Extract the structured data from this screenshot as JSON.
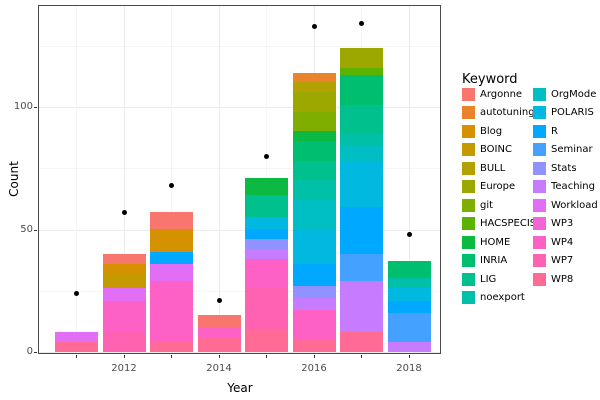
{
  "axis": {
    "x_title": "Year",
    "y_title": "Count"
  },
  "legend": {
    "title": "Keyword",
    "columns": [
      [
        "Argonne",
        "autotuning",
        "Blog",
        "BOINC",
        "BULL",
        "Europe",
        "git",
        "HACSPECIS",
        "HOME",
        "INRIA",
        "LIG",
        "noexport"
      ],
      [
        "OrgMode",
        "POLARIS",
        "R",
        "Seminar",
        "Stats",
        "Teaching",
        "Workload",
        "WP3",
        "WP4",
        "WP7",
        "WP8"
      ]
    ]
  },
  "colors": {
    "Argonne": "#F8766D",
    "autotuning": "#E9842C",
    "Blog": "#D69100",
    "BOINC": "#C49A00",
    "BULL": "#B2A100",
    "Europe": "#9CA700",
    "git": "#7FAD00",
    "HACSPECIS": "#5BB300",
    "HOME": "#0CBA43",
    "INRIA": "#00BE70",
    "LIG": "#00C08D",
    "noexport": "#00C1A7",
    "OrgMode": "#00BFC4",
    "POLARIS": "#00B8E0",
    "R": "#00A9FF",
    "Seminar": "#45A1FF",
    "Stats": "#9092FF",
    "Teaching": "#C77CFF",
    "Workload": "#E36EF6",
    "WP3": "#F564D7",
    "WP4": "#FD61C5",
    "WP7": "#FF62B0",
    "WP8": "#FF6B94"
  },
  "chart_data": {
    "type": "bar",
    "subtype": "stacked-bars-with-point-overlay",
    "title": "",
    "xlabel": "Year",
    "ylabel": "Count",
    "legend_title": "Keyword",
    "categories": [
      2011,
      2012,
      2013,
      2014,
      2015,
      2016,
      2017,
      2018
    ],
    "x_tick_years": [
      2011,
      2012,
      2013,
      2014,
      2015,
      2016,
      2017,
      2018
    ],
    "x_labeled_years": [
      2012,
      2014,
      2016,
      2018
    ],
    "y_ticks": [
      0,
      50,
      100
    ],
    "ylim": [
      0,
      141
    ],
    "grid": {
      "major_y": [
        0,
        50,
        100
      ],
      "minor_y": [
        25,
        75,
        125
      ]
    },
    "legend_position": "right",
    "bar_totals": [
      8,
      40,
      57,
      15,
      71,
      114,
      124,
      37
    ],
    "bars": [
      {
        "year": 2011,
        "segments": [
          {
            "keyword": "Workload",
            "value": 4
          },
          {
            "keyword": "WP8",
            "value": 4
          }
        ]
      },
      {
        "year": 2012,
        "segments": [
          {
            "keyword": "Argonne",
            "value": 4
          },
          {
            "keyword": "Blog",
            "value": 4
          },
          {
            "keyword": "BOINC",
            "value": 6
          },
          {
            "keyword": "Workload",
            "value": 5
          },
          {
            "keyword": "WP4",
            "value": 13
          },
          {
            "keyword": "WP7",
            "value": 8
          }
        ]
      },
      {
        "year": 2013,
        "segments": [
          {
            "keyword": "Argonne",
            "value": 7
          },
          {
            "keyword": "Blog",
            "value": 9
          },
          {
            "keyword": "R",
            "value": 5
          },
          {
            "keyword": "Workload",
            "value": 7
          },
          {
            "keyword": "WP4",
            "value": 25
          },
          {
            "keyword": "WP8",
            "value": 4
          }
        ]
      },
      {
        "year": 2014,
        "segments": [
          {
            "keyword": "Argonne",
            "value": 5
          },
          {
            "keyword": "WP4",
            "value": 4
          },
          {
            "keyword": "WP8",
            "value": 6
          }
        ]
      },
      {
        "year": 2015,
        "segments": [
          {
            "keyword": "HOME",
            "value": 7
          },
          {
            "keyword": "LIG",
            "value": 9
          },
          {
            "keyword": "POLARIS",
            "value": 5
          },
          {
            "keyword": "R",
            "value": 4
          },
          {
            "keyword": "Stats",
            "value": 4
          },
          {
            "keyword": "Teaching",
            "value": 4
          },
          {
            "keyword": "WP4",
            "value": 12
          },
          {
            "keyword": "WP7",
            "value": 17
          },
          {
            "keyword": "WP8",
            "value": 9
          }
        ]
      },
      {
        "year": 2016,
        "segments": [
          {
            "keyword": "autotuning",
            "value": 4
          },
          {
            "keyword": "BULL",
            "value": 4
          },
          {
            "keyword": "Europe",
            "value": 8
          },
          {
            "keyword": "git",
            "value": 8
          },
          {
            "keyword": "HOME",
            "value": 4
          },
          {
            "keyword": "INRIA",
            "value": 8
          },
          {
            "keyword": "LIG",
            "value": 8
          },
          {
            "keyword": "noexport",
            "value": 8
          },
          {
            "keyword": "OrgMode",
            "value": 12
          },
          {
            "keyword": "POLARIS",
            "value": 14
          },
          {
            "keyword": "R",
            "value": 9
          },
          {
            "keyword": "Stats",
            "value": 5
          },
          {
            "keyword": "Teaching",
            "value": 5
          },
          {
            "keyword": "WP4",
            "value": 12
          },
          {
            "keyword": "WP8",
            "value": 5
          }
        ]
      },
      {
        "year": 2017,
        "segments": [
          {
            "keyword": "Europe",
            "value": 8
          },
          {
            "keyword": "HACSPECIS",
            "value": 3
          },
          {
            "keyword": "INRIA",
            "value": 12
          },
          {
            "keyword": "LIG",
            "value": 12
          },
          {
            "keyword": "noexport",
            "value": 5
          },
          {
            "keyword": "OrgMode",
            "value": 6
          },
          {
            "keyword": "POLARIS",
            "value": 19
          },
          {
            "keyword": "R",
            "value": 19
          },
          {
            "keyword": "Seminar",
            "value": 11
          },
          {
            "keyword": "Teaching",
            "value": 21
          },
          {
            "keyword": "WP8",
            "value": 8
          }
        ]
      },
      {
        "year": 2018,
        "segments": [
          {
            "keyword": "INRIA",
            "value": 7
          },
          {
            "keyword": "noexport",
            "value": 4
          },
          {
            "keyword": "POLARIS",
            "value": 5
          },
          {
            "keyword": "R",
            "value": 5
          },
          {
            "keyword": "Seminar",
            "value": 12
          },
          {
            "keyword": "Teaching",
            "value": 4
          }
        ]
      }
    ],
    "points": {
      "marker": "black-dot",
      "values": [
        24,
        57,
        68,
        21,
        80,
        133,
        134,
        48
      ]
    }
  }
}
